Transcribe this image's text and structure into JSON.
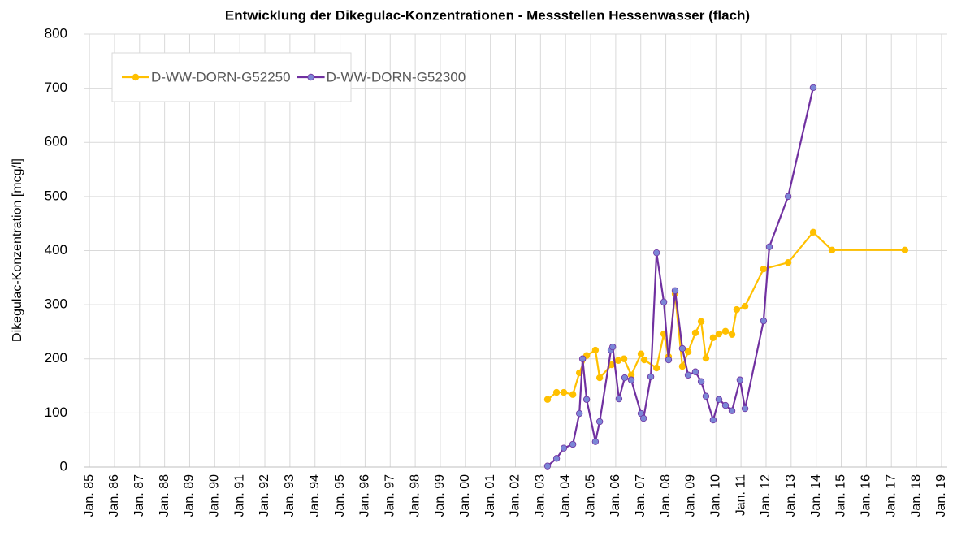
{
  "chart_data": {
    "type": "line",
    "title": "Entwicklung der Dikegulac-Konzentrationen  - Messstellen Hessenwasser (flach)",
    "y_label": "Dikegulac-Konzentration [mcg/l]",
    "xlim": [
      1984.77,
      2019.23
    ],
    "xticks": [
      {
        "value": 1985,
        "label": "Jan. 85"
      },
      {
        "value": 1986,
        "label": "Jan. 86"
      },
      {
        "value": 1987,
        "label": "Jan. 87"
      },
      {
        "value": 1988,
        "label": "Jan. 88"
      },
      {
        "value": 1989,
        "label": "Jan. 89"
      },
      {
        "value": 1990,
        "label": "Jan. 90"
      },
      {
        "value": 1991,
        "label": "Jan. 91"
      },
      {
        "value": 1992,
        "label": "Jan. 92"
      },
      {
        "value": 1993,
        "label": "Jan. 93"
      },
      {
        "value": 1994,
        "label": "Jan. 94"
      },
      {
        "value": 1995,
        "label": "Jan. 95"
      },
      {
        "value": 1996,
        "label": "Jan. 96"
      },
      {
        "value": 1997,
        "label": "Jan. 97"
      },
      {
        "value": 1998,
        "label": "Jan. 98"
      },
      {
        "value": 1999,
        "label": "Jan. 99"
      },
      {
        "value": 2000,
        "label": "Jan. 00"
      },
      {
        "value": 2001,
        "label": "Jan. 01"
      },
      {
        "value": 2002,
        "label": "Jan. 02"
      },
      {
        "value": 2003,
        "label": "Jan. 03"
      },
      {
        "value": 2004,
        "label": "Jan. 04"
      },
      {
        "value": 2005,
        "label": "Jan. 05"
      },
      {
        "value": 2006,
        "label": "Jan. 06"
      },
      {
        "value": 2007,
        "label": "Jan. 07"
      },
      {
        "value": 2008,
        "label": "Jan. 08"
      },
      {
        "value": 2009,
        "label": "Jan. 09"
      },
      {
        "value": 2010,
        "label": "Jan. 10"
      },
      {
        "value": 2011,
        "label": "Jan. 11"
      },
      {
        "value": 2012,
        "label": "Jan. 12"
      },
      {
        "value": 2013,
        "label": "Jan. 13"
      },
      {
        "value": 2014,
        "label": "Jan. 14"
      },
      {
        "value": 2015,
        "label": "Jan. 15"
      },
      {
        "value": 2016,
        "label": "Jan. 16"
      },
      {
        "value": 2017,
        "label": "Jan. 17"
      },
      {
        "value": 2018,
        "label": "Jan. 18"
      },
      {
        "value": 2019,
        "label": "Jan. 19"
      }
    ],
    "ylim": [
      0,
      800
    ],
    "yticks": [
      0,
      100,
      200,
      300,
      400,
      500,
      600,
      700,
      800
    ],
    "grid": true,
    "legend": "top-left",
    "series": [
      {
        "name": "D-WW-DORN-G52250",
        "color": "#ffc000",
        "marker_color": "#ffc000",
        "x": [
          2003.28,
          2003.64,
          2003.93,
          2004.29,
          2004.55,
          2004.84,
          2005.19,
          2005.36,
          2005.84,
          2006.1,
          2006.33,
          2006.62,
          2007.01,
          2007.14,
          2007.63,
          2007.92,
          2008.11,
          2008.37,
          2008.66,
          2008.89,
          2009.18,
          2009.41,
          2009.6,
          2009.89,
          2010.12,
          2010.38,
          2010.64,
          2010.83,
          2011.16,
          2011.9,
          2012.88,
          2013.88,
          2014.63,
          2017.54
        ],
        "values": [
          125,
          138,
          138,
          134,
          174,
          206,
          216,
          165,
          189,
          197,
          200,
          170,
          209,
          198,
          183,
          246,
          204,
          320,
          186,
          213,
          248,
          269,
          201,
          239,
          246,
          251,
          245,
          291,
          297,
          366,
          378,
          434,
          401,
          401
        ]
      },
      {
        "name": "D-WW-DORN-G52300",
        "color": "#7030a0",
        "marker_color": "#7b86d6",
        "x": [
          2003.28,
          2003.64,
          2003.93,
          2004.29,
          2004.55,
          2004.68,
          2004.84,
          2005.19,
          2005.36,
          2005.81,
          2005.88,
          2006.13,
          2006.36,
          2006.62,
          2007.01,
          2007.11,
          2007.4,
          2007.63,
          2007.92,
          2008.11,
          2008.37,
          2008.66,
          2008.89,
          2009.18,
          2009.41,
          2009.6,
          2009.89,
          2010.12,
          2010.38,
          2010.64,
          2010.96,
          2011.16,
          2011.9,
          2012.13,
          2012.88,
          2013.88
        ],
        "values": [
          2,
          16,
          35,
          42,
          99,
          200,
          125,
          47,
          84,
          216,
          222,
          126,
          165,
          161,
          99,
          90,
          167,
          396,
          305,
          198,
          326,
          219,
          170,
          176,
          158,
          131,
          87,
          125,
          114,
          104,
          161,
          108,
          270,
          407,
          500,
          701
        ]
      }
    ]
  }
}
